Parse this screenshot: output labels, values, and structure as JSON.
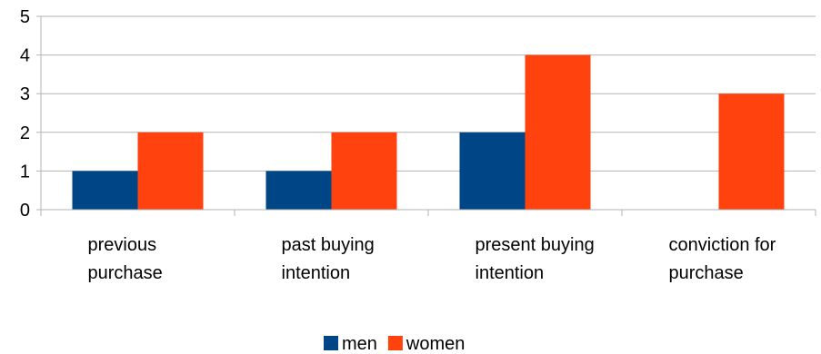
{
  "chart_data": {
    "type": "bar",
    "categories": [
      [
        "previous",
        "purchase"
      ],
      [
        "past buying",
        "intention"
      ],
      [
        "present buying",
        "intention"
      ],
      [
        "conviction for",
        "purchase"
      ]
    ],
    "series": [
      {
        "name": "men",
        "color": "#004586",
        "values": [
          1,
          1,
          2,
          0
        ]
      },
      {
        "name": "women",
        "color": "#ff420e",
        "values": [
          2,
          2,
          4,
          3
        ]
      }
    ],
    "yticks": [
      0,
      1,
      2,
      3,
      4,
      5
    ],
    "ylim": [
      0,
      5
    ],
    "grid": true,
    "legend": "bottom"
  }
}
